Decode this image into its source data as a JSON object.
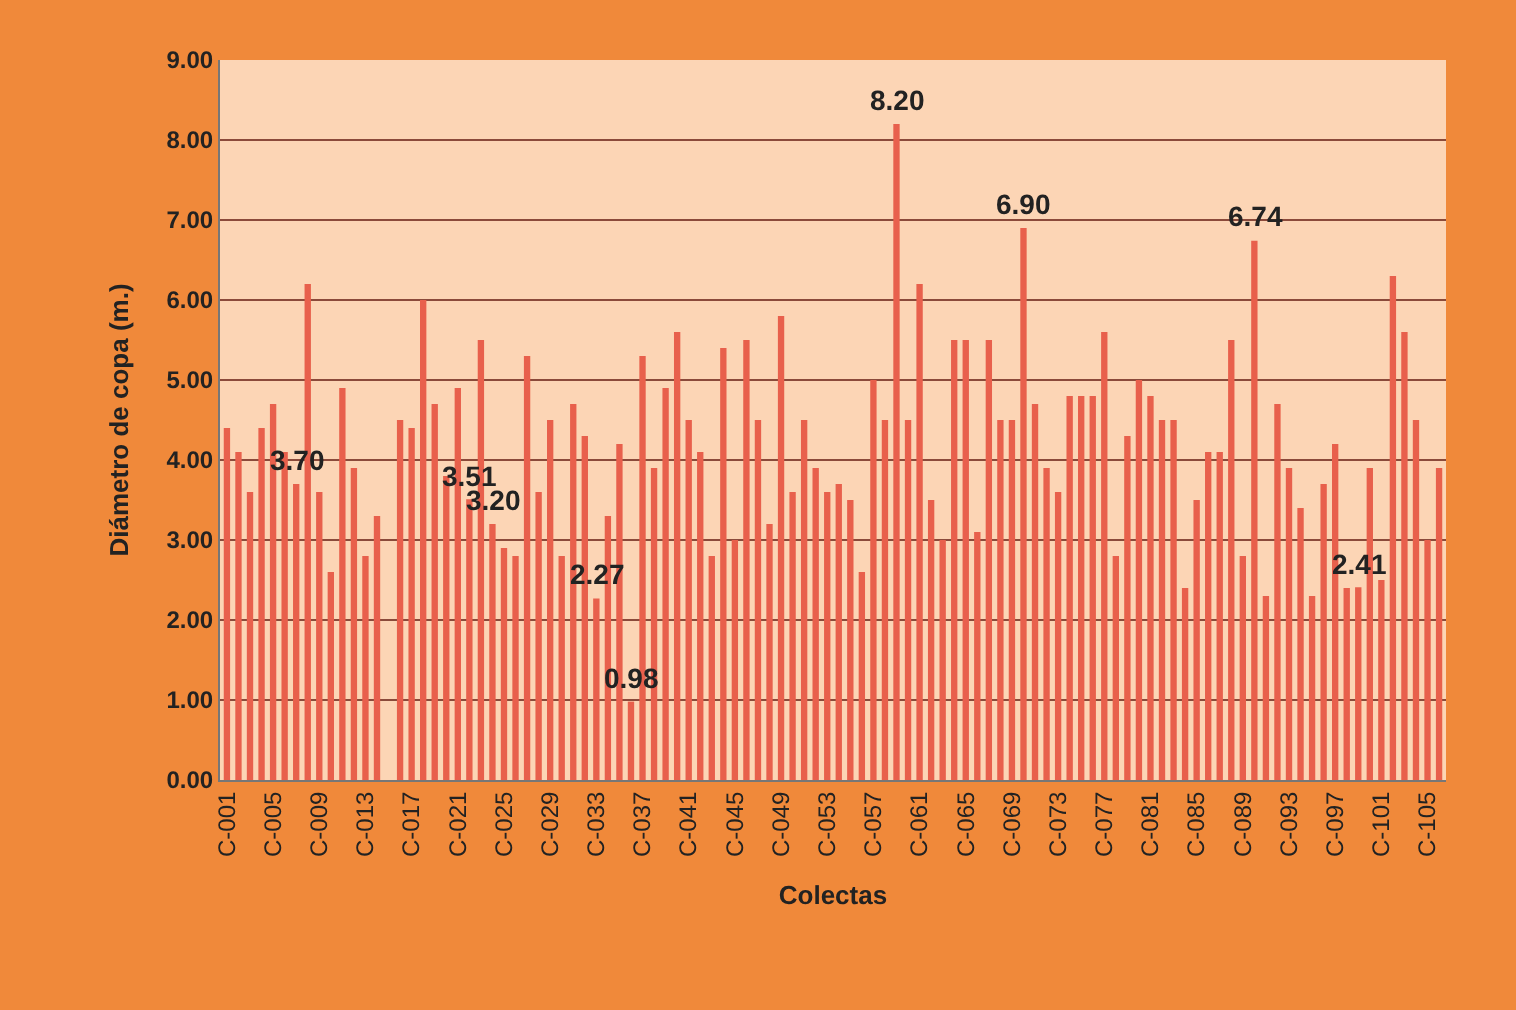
{
  "chart_data": {
    "type": "bar",
    "xlabel": "Colectas",
    "ylabel": "Diámetro de copa (m.)",
    "categories": [
      "C-001",
      null,
      null,
      null,
      "C-005",
      null,
      null,
      null,
      "C-009",
      null,
      null,
      null,
      "C-013",
      null,
      null,
      null,
      "C-017",
      null,
      null,
      null,
      "C-021",
      null,
      null,
      null,
      "C-025",
      null,
      null,
      null,
      "C-029",
      null,
      null,
      null,
      "C-033",
      null,
      null,
      null,
      "C-037",
      null,
      null,
      null,
      "C-041",
      null,
      null,
      null,
      "C-045",
      null,
      null,
      null,
      "C-049",
      null,
      null,
      null,
      "C-053",
      null,
      null,
      null,
      "C-057",
      null,
      null,
      null,
      "C-061",
      null,
      null,
      null,
      "C-065",
      null,
      null,
      null,
      "C-069",
      null,
      null,
      null,
      "C-073",
      null,
      null,
      null,
      "C-077",
      null,
      null,
      null,
      "C-081",
      null,
      null,
      null,
      "C-085",
      null,
      null,
      null,
      "C-089",
      null,
      null,
      null,
      "C-093",
      null,
      null,
      null,
      "C-097",
      null,
      null,
      null,
      "C-101",
      null,
      null,
      null,
      "C-105",
      null
    ],
    "values": [
      4.4,
      4.1,
      3.6,
      4.4,
      4.7,
      4.1,
      3.7,
      6.2,
      3.6,
      2.6,
      4.9,
      3.9,
      2.8,
      3.3,
      0,
      4.5,
      4.4,
      6.0,
      4.7,
      3.8,
      4.9,
      3.51,
      5.5,
      3.2,
      2.9,
      2.8,
      5.3,
      3.6,
      4.5,
      2.8,
      4.7,
      4.3,
      2.27,
      3.3,
      4.2,
      0.98,
      5.3,
      3.9,
      4.9,
      5.6,
      4.5,
      4.1,
      2.8,
      5.4,
      3.0,
      5.5,
      4.5,
      3.2,
      5.8,
      3.6,
      4.5,
      3.9,
      3.6,
      3.7,
      3.5,
      2.6,
      5.0,
      4.5,
      8.2,
      4.5,
      6.2,
      3.5,
      3.0,
      5.5,
      5.5,
      3.1,
      5.5,
      4.5,
      4.5,
      6.9,
      4.7,
      3.9,
      3.6,
      4.8,
      4.8,
      4.8,
      5.6,
      2.8,
      4.3,
      5.0,
      4.8,
      4.5,
      4.5,
      2.4,
      3.5,
      4.1,
      4.1,
      5.5,
      2.8,
      6.74,
      2.3,
      4.7,
      3.9,
      3.4,
      2.3,
      3.7,
      4.2,
      2.4,
      2.41,
      3.9,
      2.5,
      6.3,
      5.6,
      4.5,
      3.0,
      3.9
    ],
    "value_labels": [
      null,
      null,
      null,
      null,
      null,
      null,
      "3.70",
      null,
      null,
      null,
      null,
      null,
      null,
      null,
      null,
      null,
      null,
      null,
      null,
      null,
      null,
      "3.51",
      null,
      "3.20",
      null,
      null,
      null,
      null,
      null,
      null,
      null,
      null,
      "2.27",
      null,
      null,
      "0.98",
      null,
      null,
      null,
      null,
      null,
      null,
      null,
      null,
      null,
      null,
      null,
      null,
      null,
      null,
      null,
      null,
      null,
      null,
      null,
      null,
      null,
      null,
      "8.20",
      null,
      null,
      null,
      null,
      null,
      null,
      null,
      null,
      null,
      null,
      "6.90",
      null,
      null,
      null,
      null,
      null,
      null,
      null,
      null,
      null,
      null,
      null,
      null,
      null,
      null,
      null,
      null,
      null,
      null,
      null,
      "6.74",
      null,
      null,
      null,
      null,
      null,
      null,
      null,
      null,
      "2.41",
      null,
      null,
      null,
      null,
      null,
      null,
      null
    ],
    "color": "#e8604c",
    "ylim": [
      0,
      9
    ],
    "yticks": [
      {
        "value": 0,
        "label": "0.00"
      },
      {
        "value": 1,
        "label": "1.00"
      },
      {
        "value": 2,
        "label": "2.00"
      },
      {
        "value": 3,
        "label": "3.00"
      },
      {
        "value": 4,
        "label": "4.00"
      },
      {
        "value": 5,
        "label": "5.00"
      },
      {
        "value": 6,
        "label": "6.00"
      },
      {
        "value": 7,
        "label": "7.00"
      },
      {
        "value": 8,
        "label": "8.00"
      },
      {
        "value": 9,
        "label": "9.00"
      }
    ],
    "grid": "y"
  }
}
